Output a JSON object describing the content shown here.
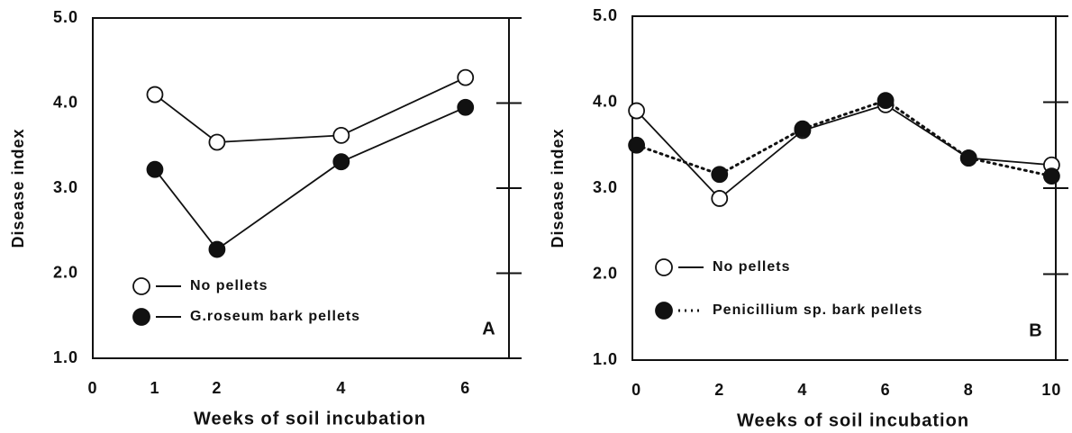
{
  "chart_data": [
    {
      "type": "line",
      "panel": "A",
      "ylabel": "Disease index",
      "xlabel": "Weeks of soil incubation",
      "x": [
        1,
        2,
        4,
        6
      ],
      "series": [
        {
          "name": "No pellets",
          "color": "#111111",
          "marker": "open",
          "dash": false,
          "values": [
            4.1,
            3.54,
            3.62,
            4.3
          ]
        },
        {
          "name": "G.roseum bark pellets",
          "color": "#111111",
          "marker": "filled",
          "dash": false,
          "values": [
            3.22,
            2.28,
            3.31,
            3.95
          ]
        }
      ],
      "xlim": [
        0,
        6.7
      ],
      "xticks": [
        0,
        1,
        2,
        4,
        6
      ],
      "ylim": [
        1,
        5
      ],
      "yticks": [
        {
          "value": 1,
          "label": "1.0"
        },
        {
          "value": 2,
          "label": "2.0"
        },
        {
          "value": 3,
          "label": "3.0"
        },
        {
          "value": 4,
          "label": "4.0"
        },
        {
          "value": 5,
          "label": "5.0"
        }
      ]
    },
    {
      "type": "line",
      "panel": "B",
      "ylabel": "Disease index",
      "xlabel": "Weeks of soil incubation",
      "x": [
        0,
        2,
        4,
        6,
        8,
        10
      ],
      "series": [
        {
          "name": "No pellets",
          "color": "#111111",
          "marker": "open",
          "dash": false,
          "values": [
            3.9,
            2.88,
            3.67,
            3.97,
            3.35,
            3.27
          ]
        },
        {
          "name": "Penicillium sp. bark pellets",
          "color": "#111111",
          "marker": "filled",
          "dash": true,
          "values": [
            3.5,
            3.16,
            3.69,
            4.02,
            3.35,
            3.14
          ]
        }
      ],
      "xlim": [
        -0.1,
        10.1
      ],
      "xticks": [
        0,
        2,
        4,
        6,
        8,
        10
      ],
      "ylim": [
        1,
        5
      ],
      "yticks": [
        {
          "value": 1,
          "label": "1.0"
        },
        {
          "value": 2,
          "label": "2.0"
        },
        {
          "value": 3,
          "label": "3.0"
        },
        {
          "value": 4,
          "label": "4.0"
        },
        {
          "value": 5,
          "label": "5.0"
        }
      ]
    }
  ]
}
